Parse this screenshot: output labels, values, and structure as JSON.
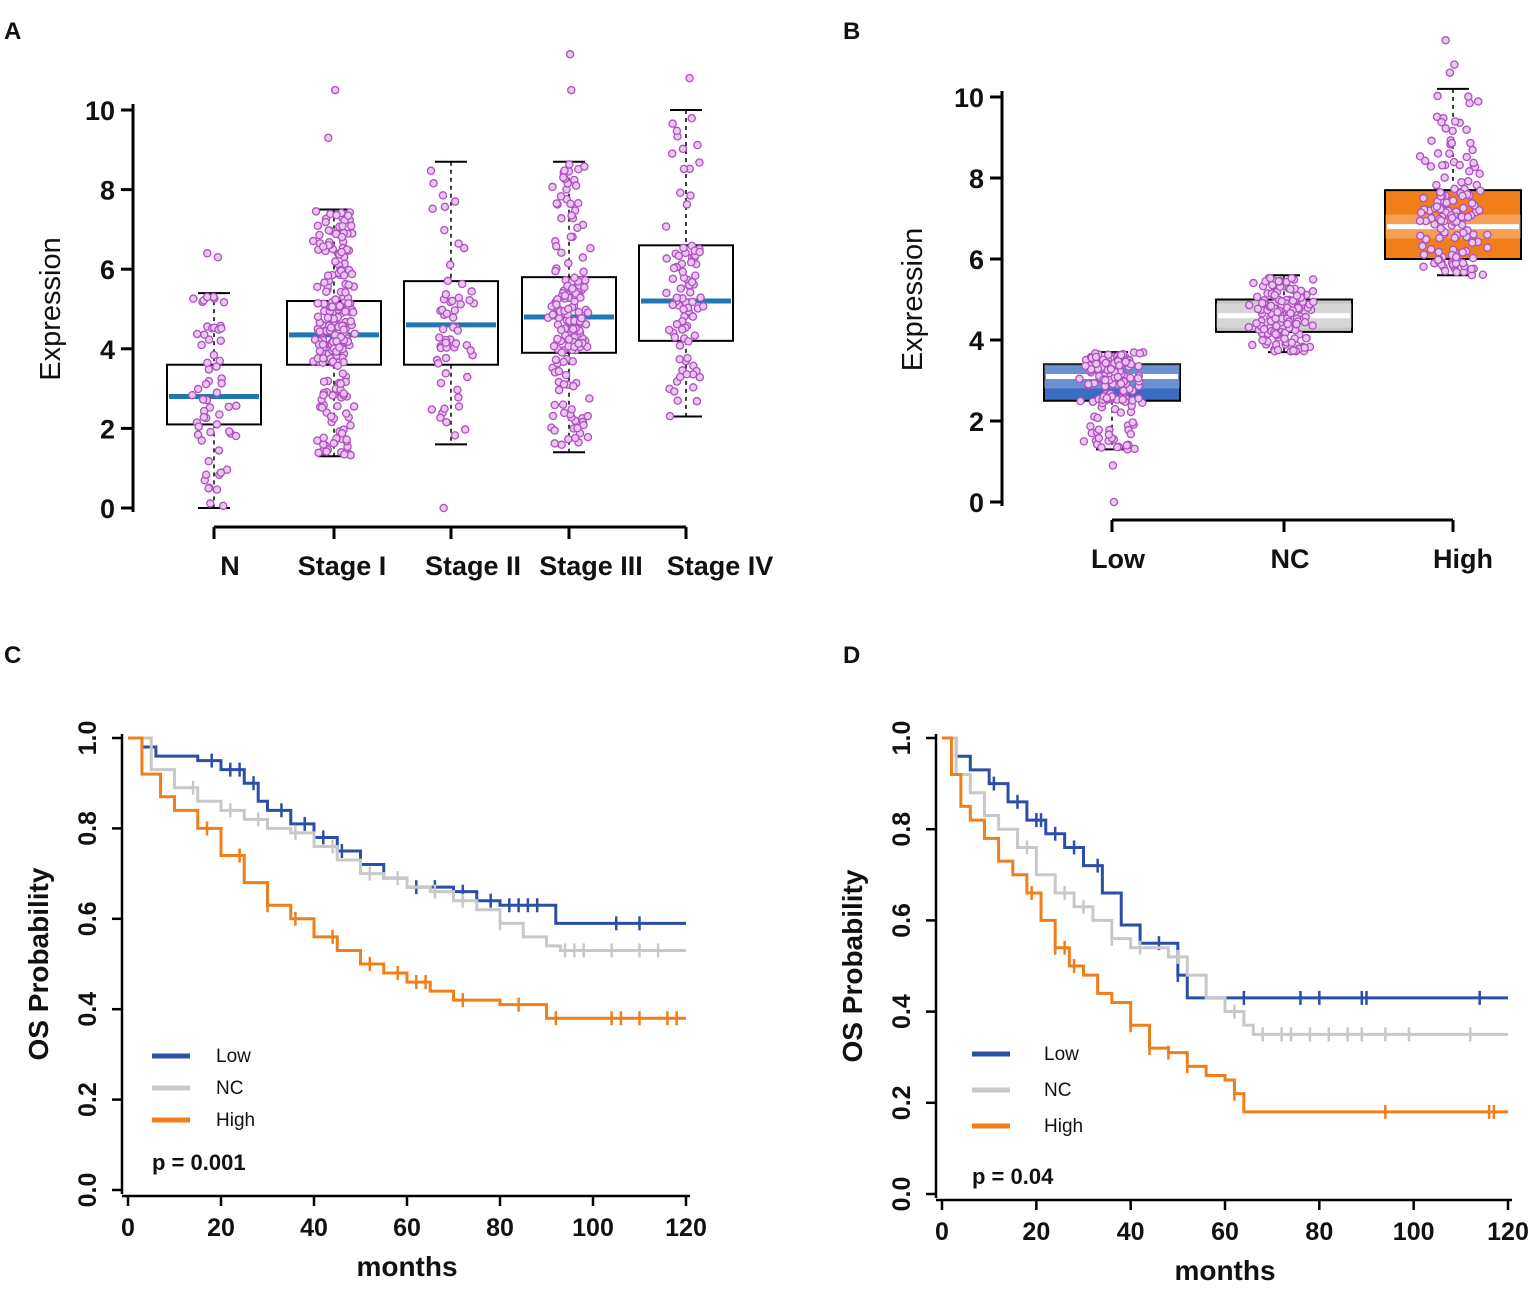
{
  "panels": {
    "a": "A",
    "b": "B",
    "c": "C",
    "d": "D"
  },
  "chart_data": [
    {
      "panel": "A",
      "type": "boxplot",
      "ylabel": "Expression",
      "xlabel": "",
      "ylim": [
        0,
        10
      ],
      "yticks": [
        0,
        2,
        4,
        6,
        8,
        10
      ],
      "categories": [
        "N",
        "Stage I",
        "Stage II",
        "Stage III",
        "Stage IV"
      ],
      "boxes": [
        {
          "min": 0.0,
          "q1": 2.1,
          "median": 2.8,
          "q3": 3.6,
          "max": 5.4,
          "n_points": 60
        },
        {
          "min": 1.3,
          "q1": 3.6,
          "median": 4.35,
          "q3": 5.2,
          "max": 7.5,
          "n_points": 260
        },
        {
          "min": 1.6,
          "q1": 3.6,
          "median": 4.6,
          "q3": 5.7,
          "max": 8.7,
          "n_points": 60
        },
        {
          "min": 1.4,
          "q1": 3.9,
          "median": 4.8,
          "q3": 5.8,
          "max": 8.7,
          "n_points": 170
        },
        {
          "min": 2.3,
          "q1": 4.2,
          "median": 5.2,
          "q3": 6.6,
          "max": 10.0,
          "n_points": 90
        }
      ],
      "outliers": [
        [
          0,
          6.4
        ],
        [
          0,
          6.3
        ],
        [
          1,
          10.5
        ],
        [
          1,
          9.3
        ],
        [
          2,
          0.0
        ],
        [
          3,
          11.4
        ],
        [
          3,
          10.5
        ],
        [
          4,
          10.8
        ]
      ],
      "colors": {
        "median": "#1f77b4",
        "points": "#b04fc0",
        "box": "#000000"
      }
    },
    {
      "panel": "B",
      "type": "boxplot",
      "ylabel": "Expression",
      "xlabel": "",
      "ylim": [
        0,
        10
      ],
      "yticks": [
        0,
        2,
        4,
        6,
        8,
        10
      ],
      "categories": [
        "Low",
        "NC",
        "High"
      ],
      "boxes": [
        {
          "min": 1.3,
          "q1": 2.5,
          "median": 3.1,
          "q3": 3.4,
          "max": 3.7,
          "n_points": 150,
          "fill": "#3a6cc4"
        },
        {
          "min": 3.7,
          "q1": 4.2,
          "median": 4.6,
          "q3": 5.0,
          "max": 5.6,
          "n_points": 150,
          "fill": "#c8c8c8"
        },
        {
          "min": 5.6,
          "q1": 6.0,
          "median": 6.8,
          "q3": 7.7,
          "max": 10.2,
          "n_points": 150,
          "fill": "#f07f1a"
        }
      ],
      "outliers": [
        [
          0,
          0.0
        ],
        [
          0,
          0.9
        ],
        [
          2,
          11.4
        ],
        [
          2,
          10.8
        ],
        [
          2,
          10.6
        ]
      ],
      "colors": {
        "median": "#ffffff",
        "points": "#b04fc0",
        "box": "#000000"
      }
    },
    {
      "panel": "C",
      "type": "line",
      "ylabel": "OS Probability",
      "xlabel": "months",
      "xlim": [
        0,
        120
      ],
      "ylim": [
        0,
        1
      ],
      "xticks": [
        0,
        20,
        40,
        60,
        80,
        100,
        120
      ],
      "yticks": [
        "0.0",
        "0.2",
        "0.4",
        "0.6",
        "0.8",
        "1.0"
      ],
      "p_value": "p = 0.001",
      "series": [
        {
          "name": "Low",
          "color": "#2b4fa8",
          "x": [
            0,
            3,
            6,
            10,
            15,
            20,
            25,
            28,
            30,
            35,
            40,
            45,
            50,
            55,
            60,
            65,
            70,
            75,
            80,
            85,
            90,
            92,
            120
          ],
          "y": [
            1.0,
            0.98,
            0.96,
            0.96,
            0.95,
            0.93,
            0.9,
            0.86,
            0.84,
            0.81,
            0.78,
            0.75,
            0.72,
            0.69,
            0.67,
            0.67,
            0.66,
            0.64,
            0.63,
            0.63,
            0.63,
            0.59,
            0.59
          ],
          "censor_x": [
            18,
            22,
            24,
            27,
            33,
            38,
            42,
            46,
            62,
            66,
            72,
            78,
            82,
            84,
            86,
            88,
            105,
            110
          ]
        },
        {
          "name": "NC",
          "color": "#c8c8c8",
          "x": [
            0,
            5,
            10,
            15,
            20,
            25,
            30,
            35,
            40,
            45,
            50,
            55,
            60,
            65,
            70,
            75,
            80,
            85,
            90,
            93,
            120
          ],
          "y": [
            1.0,
            0.93,
            0.89,
            0.86,
            0.84,
            0.82,
            0.8,
            0.79,
            0.76,
            0.73,
            0.7,
            0.69,
            0.67,
            0.66,
            0.64,
            0.62,
            0.59,
            0.56,
            0.54,
            0.53,
            0.53
          ],
          "censor_x": [
            14,
            22,
            28,
            36,
            44,
            52,
            58,
            66,
            72,
            80,
            94,
            96,
            98,
            104,
            110,
            114
          ]
        },
        {
          "name": "High",
          "color": "#f07f1a",
          "x": [
            0,
            3,
            7,
            10,
            15,
            20,
            25,
            30,
            35,
            40,
            45,
            50,
            55,
            60,
            65,
            70,
            73,
            80,
            85,
            90,
            120
          ],
          "y": [
            1.0,
            0.92,
            0.87,
            0.84,
            0.8,
            0.74,
            0.68,
            0.63,
            0.6,
            0.56,
            0.53,
            0.5,
            0.48,
            0.46,
            0.44,
            0.42,
            0.42,
            0.41,
            0.41,
            0.38,
            0.38
          ],
          "censor_x": [
            17,
            24,
            30,
            36,
            44,
            52,
            58,
            62,
            64,
            72,
            84,
            92,
            104,
            106,
            110,
            116,
            118
          ]
        }
      ],
      "legend": [
        "Low",
        "NC",
        "High"
      ]
    },
    {
      "panel": "D",
      "type": "line",
      "ylabel": "OS Probability",
      "xlabel": "months",
      "xlim": [
        0,
        120
      ],
      "ylim": [
        0,
        1
      ],
      "xticks": [
        0,
        20,
        40,
        60,
        80,
        100,
        120
      ],
      "yticks": [
        "0.0",
        "0.2",
        "0.4",
        "0.6",
        "0.8",
        "1.0"
      ],
      "p_value": "p = 0.04",
      "series": [
        {
          "name": "Low",
          "color": "#2b4fa8",
          "x": [
            0,
            3,
            6,
            10,
            14,
            18,
            22,
            26,
            30,
            34,
            38,
            42,
            46,
            50,
            52,
            120
          ],
          "y": [
            1.0,
            0.96,
            0.93,
            0.9,
            0.86,
            0.82,
            0.79,
            0.76,
            0.72,
            0.66,
            0.59,
            0.55,
            0.55,
            0.48,
            0.43,
            0.43
          ],
          "censor_x": [
            11,
            16,
            20,
            21,
            24,
            28,
            33,
            46,
            50,
            64,
            76,
            80,
            89,
            90,
            114
          ]
        },
        {
          "name": "NC",
          "color": "#c8c8c8",
          "x": [
            0,
            3,
            6,
            9,
            12,
            16,
            20,
            24,
            28,
            32,
            36,
            40,
            44,
            48,
            52,
            56,
            60,
            64,
            66,
            120
          ],
          "y": [
            1.0,
            0.92,
            0.88,
            0.83,
            0.8,
            0.76,
            0.7,
            0.66,
            0.63,
            0.6,
            0.56,
            0.54,
            0.54,
            0.52,
            0.48,
            0.43,
            0.4,
            0.37,
            0.35,
            0.35
          ],
          "censor_x": [
            18,
            26,
            30,
            36,
            42,
            50,
            62,
            68,
            72,
            74,
            78,
            82,
            86,
            89,
            94,
            99,
            112
          ]
        },
        {
          "name": "High",
          "color": "#f07f1a",
          "x": [
            0,
            2,
            4,
            6,
            9,
            12,
            15,
            18,
            21,
            24,
            27,
            30,
            33,
            36,
            40,
            44,
            48,
            52,
            56,
            60,
            62,
            64,
            120
          ],
          "y": [
            1.0,
            0.92,
            0.85,
            0.82,
            0.78,
            0.73,
            0.7,
            0.66,
            0.6,
            0.54,
            0.5,
            0.48,
            0.44,
            0.42,
            0.37,
            0.32,
            0.31,
            0.28,
            0.26,
            0.25,
            0.22,
            0.18,
            0.18
          ],
          "censor_x": [
            19,
            24,
            26,
            28,
            40,
            44,
            48,
            52,
            62,
            94,
            116,
            117
          ]
        }
      ],
      "legend": [
        "Low",
        "NC",
        "High"
      ]
    }
  ]
}
